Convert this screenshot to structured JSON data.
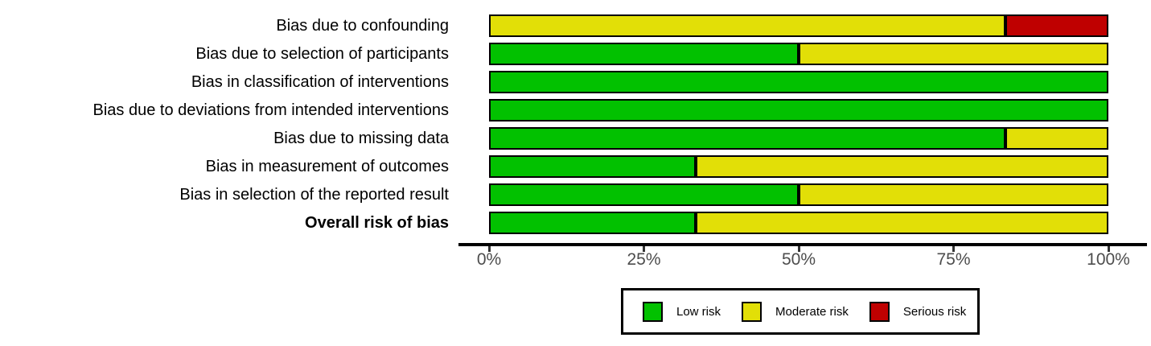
{
  "chart_data": {
    "type": "bar",
    "orientation": "horizontal",
    "stacked": true,
    "unit": "percent",
    "title": "",
    "xlabel": "",
    "ylabel": "",
    "xlim": [
      0,
      100
    ],
    "grid": false,
    "categories": [
      "Bias due to confounding",
      "Bias due to selection of participants",
      "Bias in classification of interventions",
      "Bias due to deviations from intended interventions",
      "Bias due to missing data",
      "Bias in measurement of outcomes",
      "Bias in selection of the reported result",
      "Overall risk of bias"
    ],
    "bold_categories": [
      "Overall risk of bias"
    ],
    "series": [
      {
        "name": "Low risk",
        "color": "#02C100",
        "values": [
          0,
          50,
          100,
          100,
          83.33,
          33.33,
          50,
          33.33
        ]
      },
      {
        "name": "Moderate risk",
        "color": "#E2DF07",
        "values": [
          83.33,
          50,
          0,
          0,
          16.67,
          66.67,
          50,
          66.67
        ]
      },
      {
        "name": "Serious risk",
        "color": "#BF0000",
        "values": [
          16.67,
          0,
          0,
          0,
          0,
          0,
          0,
          0
        ]
      }
    ],
    "x_ticks": [
      {
        "label": "0%",
        "value": 0
      },
      {
        "label": "25%",
        "value": 25
      },
      {
        "label": "50%",
        "value": 50
      },
      {
        "label": "75%",
        "value": 75
      },
      {
        "label": "100%",
        "value": 100
      }
    ],
    "legend": {
      "position": "bottom",
      "entries": [
        {
          "label": "Low risk",
          "color": "#02C100"
        },
        {
          "label": "Moderate risk",
          "color": "#E2DF07"
        },
        {
          "label": "Serious risk",
          "color": "#BF0000"
        }
      ]
    },
    "colors": {
      "low_risk": "#02C100",
      "moderate_risk": "#E2DF07",
      "serious_risk": "#BF0000",
      "bar_border": "#000000",
      "axis_text": "#4d4d4d",
      "axis_line": "#000000"
    }
  }
}
